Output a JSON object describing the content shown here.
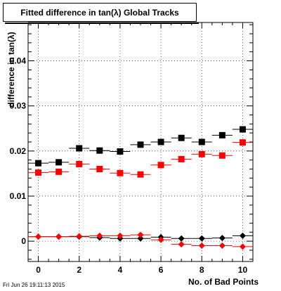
{
  "footer": "Fri Jun 26 19:11:13 2015",
  "chart_data": {
    "type": "scatter",
    "title": "Fitted difference in tan(λ)  Global Tracks",
    "xlabel": "No. of Bad Points",
    "ylabel": "difference in tan(λ)",
    "xlim": [
      -0.5,
      10.5
    ],
    "ylim": [
      -0.0045,
      0.0485
    ],
    "x_ticks": [
      0,
      2,
      4,
      6,
      8,
      10
    ],
    "y_ticks": [
      0,
      0.01,
      0.02,
      0.03,
      0.04
    ],
    "y_tick_labels": [
      "0",
      "0.01",
      "0.02",
      "0.03",
      "0.04"
    ],
    "grid": true,
    "x": [
      0,
      1,
      2,
      3,
      4,
      5,
      6,
      7,
      8,
      9,
      10
    ],
    "series": [
      {
        "marker": "square",
        "color": "#000000",
        "values": [
          0.0173,
          0.0175,
          0.0206,
          0.0201,
          0.0199,
          0.0214,
          0.022,
          0.0229,
          0.022,
          0.0235,
          0.0248
        ]
      },
      {
        "marker": "square",
        "color": "#ff0000",
        "values": [
          0.0152,
          0.0154,
          0.0171,
          0.016,
          0.0151,
          0.0148,
          0.0169,
          0.0182,
          0.0193,
          0.019,
          0.0219
        ]
      },
      {
        "marker": "diamond",
        "color": "#000000",
        "values": [
          0.001,
          0.001,
          0.001,
          0.0008,
          0.0006,
          0.0006,
          0.0009,
          0.0006,
          0.0006,
          0.0007,
          0.0012
        ]
      },
      {
        "marker": "diamond",
        "color": "#ff0000",
        "values": [
          0.001,
          0.001,
          0.0011,
          0.0012,
          0.0012,
          0.0014,
          0.0003,
          -0.0007,
          -0.001,
          -0.001,
          -0.0012
        ]
      }
    ]
  }
}
